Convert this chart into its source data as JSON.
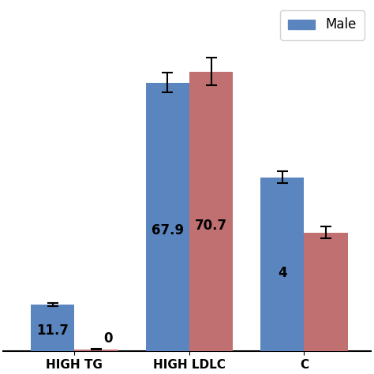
{
  "categories": [
    "HIGH TG",
    "HIGH LDLC",
    "HIGH C"
  ],
  "male_values": [
    11.7,
    67.9,
    44.0
  ],
  "female_values": [
    0.5,
    70.7,
    30.0
  ],
  "male_errors": [
    0.4,
    2.5,
    1.5
  ],
  "female_errors": [
    0.1,
    3.5,
    1.5
  ],
  "male_color": "#5b85be",
  "female_color": "#c07070",
  "bar_width": 0.38,
  "ylim": [
    0,
    88
  ],
  "background_color": "#ffffff",
  "label_fontsize": 12,
  "tick_fontsize": 11,
  "legend_fontsize": 12,
  "figsize": [
    4.74,
    4.74
  ],
  "dpi": 100,
  "xlim_left": -0.62,
  "xlim_right": 2.58
}
